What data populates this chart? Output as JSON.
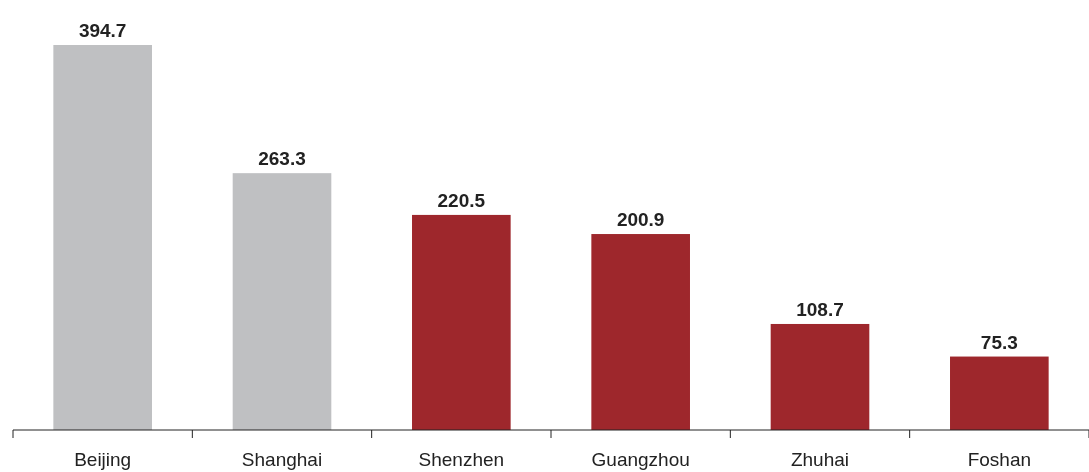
{
  "chart_data": {
    "type": "bar",
    "categories": [
      "Beijing",
      "Shanghai",
      "Shenzhen",
      "Guangzhou",
      "Zhuhai",
      "Foshan"
    ],
    "values": [
      394.7,
      263.3,
      220.5,
      200.9,
      108.7,
      75.3
    ],
    "colors": [
      "#bfc0c2",
      "#bfc0c2",
      "#9e272c",
      "#9e272c",
      "#9e272c",
      "#9e272c"
    ],
    "data_labels": true
  }
}
